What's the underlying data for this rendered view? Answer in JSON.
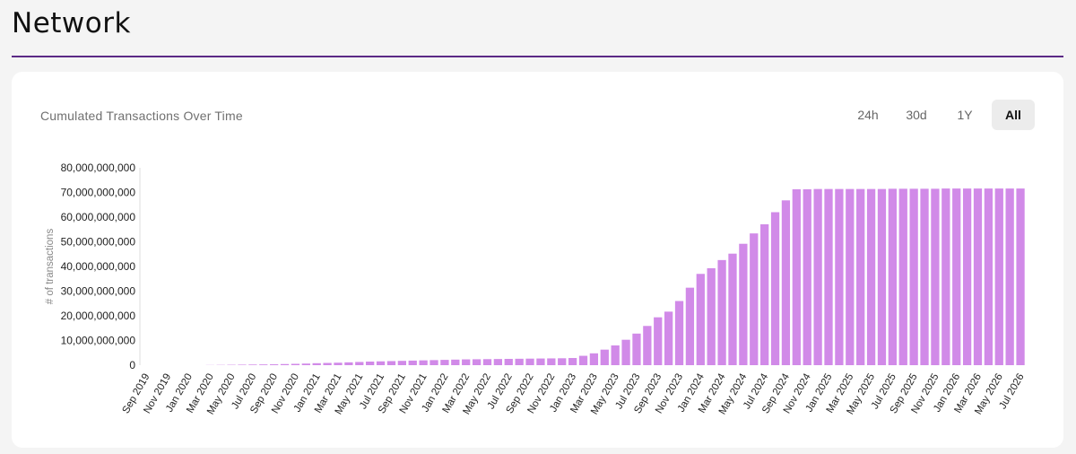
{
  "page": {
    "title": "Network"
  },
  "card": {
    "chart_title": "Cumulated Transactions Over Time",
    "range_tabs": [
      {
        "label": "24h",
        "active": false
      },
      {
        "label": "30d",
        "active": false
      },
      {
        "label": "1Y",
        "active": false
      },
      {
        "label": "All",
        "active": true
      }
    ]
  },
  "colors": {
    "bar": "#d18ae8",
    "accent_rule": "#5b2a86"
  },
  "chart_data": {
    "type": "bar",
    "title": "Cumulated Transactions Over Time",
    "xlabel": "",
    "ylabel": "# of transactions",
    "ylim": [
      0,
      80000000000
    ],
    "y_ticks": [
      0,
      10000000000,
      20000000000,
      30000000000,
      40000000000,
      50000000000,
      60000000000,
      70000000000,
      80000000000
    ],
    "y_tick_labels": [
      "0",
      "10,000,000,000",
      "20,000,000,000",
      "30,000,000,000",
      "40,000,000,000",
      "50,000,000,000",
      "60,000,000,000",
      "70,000,000,000",
      "80,000,000,000"
    ],
    "x_tick_labels": [
      "Sep 2019",
      "Nov 2019",
      "Jan 2020",
      "Mar 2020",
      "May 2020",
      "Jul 2020",
      "Sep 2020",
      "Nov 2020",
      "Jan 2021",
      "Mar 2021",
      "May 2021",
      "Jul 2021",
      "Sep 2021",
      "Nov 2021",
      "Jan 2022",
      "Mar 2022",
      "May 2022",
      "Jul 2022",
      "Sep 2022",
      "Nov 2022",
      "Jan 2023",
      "Mar 2023",
      "May 2023",
      "Jul 2023",
      "Sep 2023",
      "Nov 2023",
      "Jan 2024",
      "Mar 2024",
      "May 2024",
      "Jul 2024",
      "Sep 2024",
      "Nov 2024",
      "Jan 2025",
      "Mar 2025",
      "May 2025",
      "Jul 2025",
      "Sep 2025",
      "Nov 2025",
      "Jan 2026",
      "Mar 2026",
      "May 2026",
      "Jul 2026"
    ],
    "categories": [
      "Sep 2019",
      "Oct 2019",
      "Nov 2019",
      "Dec 2019",
      "Jan 2020",
      "Feb 2020",
      "Mar 2020",
      "Apr 2020",
      "May 2020",
      "Jun 2020",
      "Jul 2020",
      "Aug 2020",
      "Sep 2020",
      "Oct 2020",
      "Nov 2020",
      "Dec 2020",
      "Jan 2021",
      "Feb 2021",
      "Mar 2021",
      "Apr 2021",
      "May 2021",
      "Jun 2021",
      "Jul 2021",
      "Aug 2021",
      "Sep 2021",
      "Oct 2021",
      "Nov 2021",
      "Dec 2021",
      "Jan 2022",
      "Feb 2022",
      "Mar 2022",
      "Apr 2022",
      "May 2022",
      "Jun 2022",
      "Jul 2022",
      "Aug 2022",
      "Sep 2022",
      "Oct 2022",
      "Nov 2022",
      "Dec 2022",
      "Jan 2023",
      "Feb 2023",
      "Mar 2023",
      "Apr 2023",
      "May 2023",
      "Jun 2023",
      "Jul 2023",
      "Aug 2023",
      "Sep 2023",
      "Oct 2023",
      "Nov 2023",
      "Dec 2023",
      "Jan 2024",
      "Feb 2024",
      "Mar 2024",
      "Apr 2024",
      "May 2024",
      "Jun 2024",
      "Jul 2024",
      "Aug 2024",
      "Sep 2024",
      "Oct 2024",
      "Nov 2024",
      "Dec 2024",
      "Jan 2025",
      "Feb 2025",
      "Mar 2025",
      "Apr 2025",
      "May 2025",
      "Jun 2025",
      "Jul 2025",
      "Aug 2025",
      "Sep 2025",
      "Oct 2025",
      "Nov 2025",
      "Dec 2025",
      "Jan 2026",
      "Feb 2026",
      "Mar 2026",
      "Apr 2026",
      "May 2026",
      "Jun 2026",
      "Jul 2026"
    ],
    "values": [
      0,
      0,
      0,
      0,
      0,
      0,
      50000000,
      100000000,
      150000000,
      200000000,
      250000000,
      300000000,
      350000000,
      450000000,
      550000000,
      650000000,
      800000000,
      900000000,
      1000000000,
      1150000000,
      1300000000,
      1450000000,
      1550000000,
      1650000000,
      1750000000,
      1850000000,
      1950000000,
      2050000000,
      2150000000,
      2250000000,
      2350000000,
      2400000000,
      2450000000,
      2500000000,
      2550000000,
      2600000000,
      2650000000,
      2700000000,
      2750000000,
      2800000000,
      2900000000,
      3800000000,
      4800000000,
      6300000000,
      8000000000,
      10300000000,
      12800000000,
      15900000000,
      19400000000,
      21700000000,
      26000000000,
      31400000000,
      37000000000,
      39300000000,
      42600000000,
      45200000000,
      49200000000,
      53400000000,
      57100000000,
      62000000000,
      66800000000,
      71300000000,
      71300000000,
      71400000000,
      71400000000,
      71400000000,
      71400000000,
      71400000000,
      71400000000,
      71400000000,
      71500000000,
      71500000000,
      71500000000,
      71500000000,
      71500000000,
      71600000000,
      71600000000,
      71600000000,
      71600000000,
      71600000000,
      71600000000,
      71600000000,
      71600000000
    ]
  }
}
